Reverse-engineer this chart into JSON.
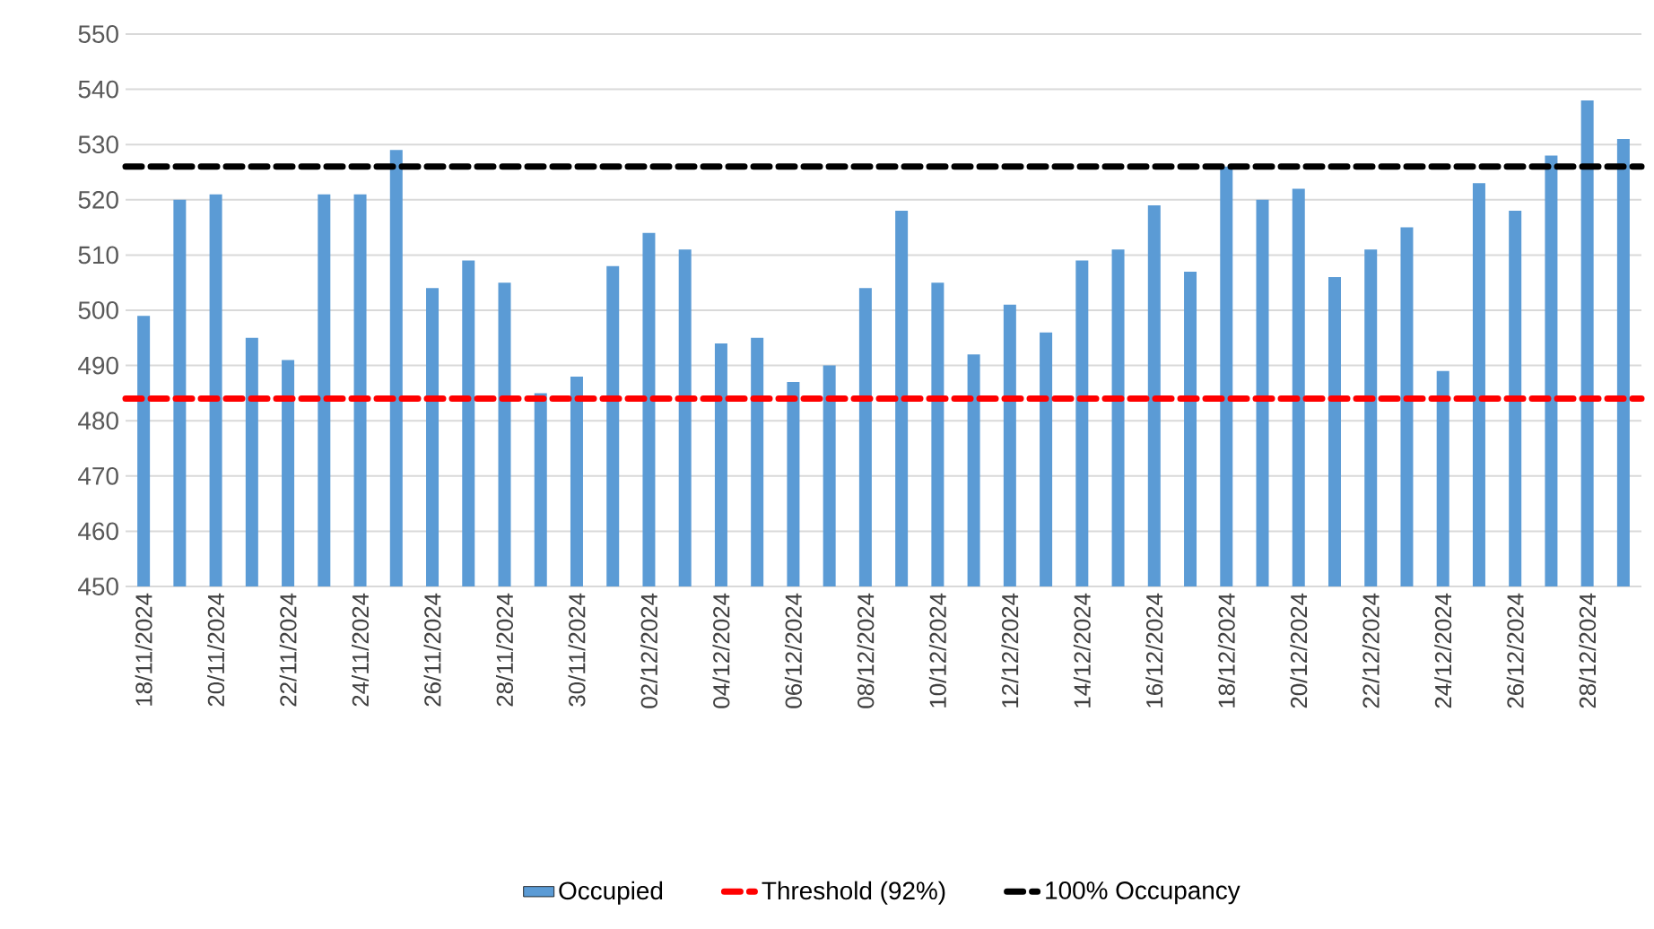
{
  "chart_data": {
    "type": "bar",
    "categories": [
      "18/11/2024",
      null,
      "20/11/2024",
      null,
      "22/11/2024",
      null,
      "24/11/2024",
      null,
      "26/11/2024",
      null,
      "28/11/2024",
      null,
      "30/11/2024",
      null,
      "02/12/2024",
      null,
      "04/12/2024",
      null,
      "06/12/2024",
      null,
      "08/12/2024",
      null,
      "10/12/2024",
      null,
      "12/12/2024",
      null,
      "14/12/2024",
      null,
      "16/12/2024",
      null,
      "18/12/2024",
      null,
      "20/12/2024",
      null,
      "22/12/2024",
      null,
      "24/12/2024",
      null,
      "26/12/2024",
      null,
      "28/12/2024",
      null
    ],
    "series": [
      {
        "name": "Occupied",
        "color": "#5b9bd5",
        "values": [
          499,
          520,
          521,
          495,
          491,
          521,
          521,
          529,
          504,
          509,
          505,
          485,
          488,
          508,
          514,
          511,
          494,
          495,
          487,
          490,
          504,
          518,
          505,
          492,
          501,
          496,
          509,
          511,
          519,
          507,
          526,
          520,
          522,
          506,
          511,
          515,
          489,
          523,
          518,
          528,
          538,
          531
        ]
      }
    ],
    "ref_lines": [
      {
        "axis": "y",
        "value": 484,
        "label": "Threshold (92%)",
        "color": "#ff0000",
        "line_style": "dashed"
      },
      {
        "axis": "y",
        "value": 526,
        "label": "100% Occupancy",
        "color": "#000000",
        "line_style": "dashed"
      }
    ],
    "ylim": [
      450,
      550
    ],
    "yticks": [
      450,
      460,
      470,
      480,
      490,
      500,
      510,
      520,
      530,
      540,
      550
    ],
    "grid": "y",
    "legend": "bottom"
  }
}
